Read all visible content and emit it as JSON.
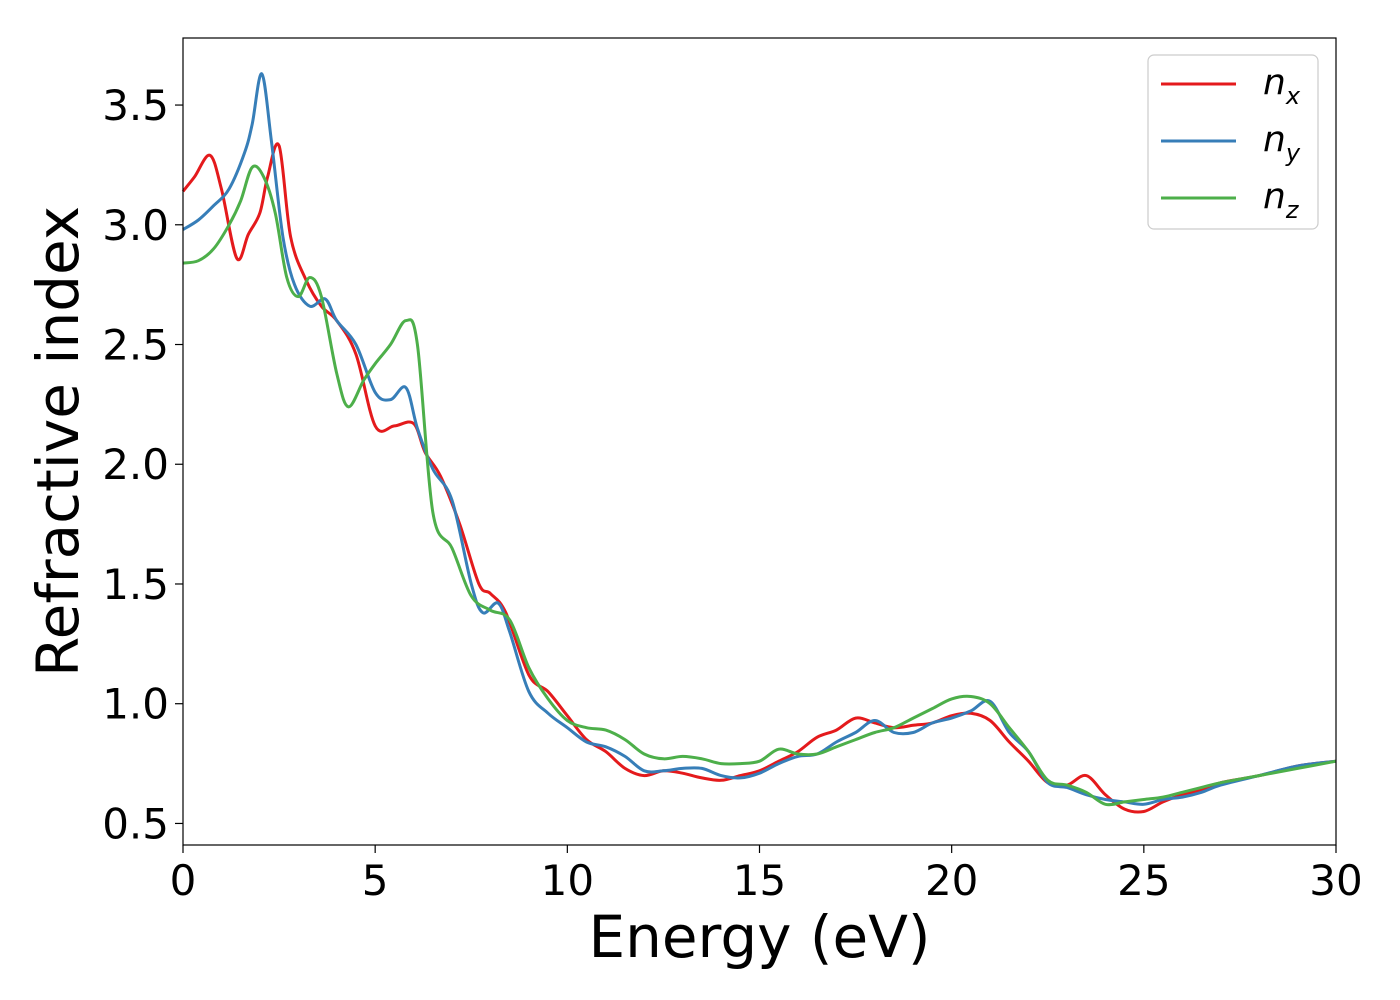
{
  "chart_data": {
    "type": "line",
    "xlabel": "Energy (eV)",
    "ylabel": "Refractive index",
    "xlim": [
      0,
      30
    ],
    "ylim": [
      0.41,
      3.78
    ],
    "xticks": [
      "0",
      "5",
      "10",
      "15",
      "20",
      "25",
      "30"
    ],
    "yticks": [
      "0.5",
      "1.0",
      "1.5",
      "2.0",
      "2.5",
      "3.0",
      "3.5"
    ],
    "grid": false,
    "legend_position": "top-right",
    "series": [
      {
        "name": "n_x",
        "label_main": "n",
        "label_sub": "x",
        "color": "#e41a1c",
        "x": [
          0,
          0.3,
          0.7,
          1.0,
          1.4,
          1.7,
          2.0,
          2.2,
          2.5,
          2.8,
          3.2,
          3.6,
          4.0,
          4.5,
          5.0,
          5.5,
          6.0,
          6.3,
          6.7,
          7.2,
          7.7,
          8.0,
          8.4,
          9.0,
          9.5,
          10.0,
          10.5,
          11.0,
          11.5,
          12.0,
          12.5,
          13.0,
          13.5,
          14.0,
          14.5,
          15.0,
          15.5,
          16.0,
          16.5,
          17.0,
          17.5,
          18.0,
          18.5,
          19.0,
          19.5,
          20.0,
          20.5,
          21.0,
          21.5,
          22.0,
          22.5,
          23.0,
          23.5,
          24.0,
          24.5,
          25.0,
          25.5,
          26.0,
          26.5,
          27.0,
          28.0,
          29.0,
          30.0
        ],
        "values": [
          3.14,
          3.2,
          3.29,
          3.15,
          2.86,
          2.96,
          3.05,
          3.2,
          3.33,
          2.95,
          2.77,
          2.66,
          2.6,
          2.46,
          2.16,
          2.16,
          2.17,
          2.05,
          1.95,
          1.75,
          1.5,
          1.46,
          1.38,
          1.12,
          1.05,
          0.95,
          0.85,
          0.8,
          0.73,
          0.7,
          0.72,
          0.71,
          0.69,
          0.68,
          0.7,
          0.72,
          0.76,
          0.8,
          0.86,
          0.89,
          0.94,
          0.92,
          0.9,
          0.91,
          0.92,
          0.95,
          0.96,
          0.93,
          0.84,
          0.76,
          0.67,
          0.66,
          0.7,
          0.62,
          0.56,
          0.55,
          0.59,
          0.62,
          0.64,
          0.67,
          0.7,
          0.74,
          0.76
        ]
      },
      {
        "name": "n_y",
        "label_main": "n",
        "label_sub": "y",
        "color": "#377eb8",
        "x": [
          0,
          0.4,
          0.8,
          1.2,
          1.6,
          1.8,
          2.05,
          2.3,
          2.6,
          2.9,
          3.3,
          3.7,
          4.0,
          4.5,
          5.0,
          5.4,
          5.8,
          6.1,
          6.5,
          7.0,
          7.5,
          7.8,
          8.2,
          8.5,
          9.0,
          9.5,
          10.0,
          10.5,
          11.0,
          11.5,
          12.0,
          12.5,
          13.0,
          13.5,
          14.0,
          14.5,
          15.0,
          15.5,
          16.0,
          16.5,
          17.0,
          17.5,
          18.0,
          18.5,
          19.0,
          19.5,
          20.0,
          20.5,
          21.0,
          21.5,
          22.0,
          22.5,
          23.0,
          23.5,
          24.0,
          24.5,
          25.0,
          25.5,
          26.0,
          26.5,
          27.0,
          28.0,
          29.0,
          30.0
        ],
        "values": [
          2.98,
          3.02,
          3.08,
          3.15,
          3.3,
          3.42,
          3.63,
          3.35,
          2.95,
          2.75,
          2.66,
          2.69,
          2.6,
          2.5,
          2.3,
          2.27,
          2.32,
          2.15,
          1.98,
          1.85,
          1.5,
          1.38,
          1.42,
          1.3,
          1.05,
          0.96,
          0.9,
          0.84,
          0.82,
          0.78,
          0.72,
          0.72,
          0.73,
          0.73,
          0.7,
          0.69,
          0.71,
          0.75,
          0.78,
          0.79,
          0.84,
          0.88,
          0.93,
          0.88,
          0.88,
          0.92,
          0.94,
          0.97,
          1.01,
          0.88,
          0.8,
          0.67,
          0.65,
          0.62,
          0.6,
          0.59,
          0.58,
          0.6,
          0.61,
          0.63,
          0.66,
          0.7,
          0.74,
          0.76
        ]
      },
      {
        "name": "n_z",
        "label_main": "n",
        "label_sub": "z",
        "color": "#4daf4a",
        "x": [
          0,
          0.4,
          0.8,
          1.2,
          1.5,
          1.8,
          2.1,
          2.4,
          2.7,
          3.0,
          3.3,
          3.6,
          4.0,
          4.3,
          4.7,
          5.0,
          5.4,
          5.8,
          6.1,
          6.5,
          7.0,
          7.5,
          8.0,
          8.5,
          9.0,
          9.5,
          10.0,
          10.5,
          11.0,
          11.5,
          12.0,
          12.5,
          13.0,
          13.5,
          14.0,
          14.5,
          15.0,
          15.5,
          16.0,
          16.5,
          17.0,
          17.5,
          18.0,
          18.5,
          19.0,
          19.5,
          20.0,
          20.5,
          21.0,
          21.5,
          22.0,
          22.5,
          23.0,
          23.5,
          24.0,
          24.5,
          25.0,
          25.5,
          26.0,
          26.5,
          27.0,
          28.0,
          29.0,
          30.0
        ],
        "values": [
          2.84,
          2.85,
          2.9,
          3.0,
          3.1,
          3.24,
          3.2,
          3.05,
          2.78,
          2.7,
          2.78,
          2.7,
          2.38,
          2.24,
          2.35,
          2.42,
          2.5,
          2.6,
          2.5,
          1.8,
          1.65,
          1.45,
          1.39,
          1.35,
          1.15,
          1.02,
          0.93,
          0.9,
          0.89,
          0.85,
          0.79,
          0.77,
          0.78,
          0.77,
          0.75,
          0.75,
          0.76,
          0.81,
          0.79,
          0.79,
          0.82,
          0.85,
          0.88,
          0.9,
          0.94,
          0.98,
          1.02,
          1.03,
          1.0,
          0.9,
          0.8,
          0.68,
          0.66,
          0.63,
          0.58,
          0.59,
          0.6,
          0.61,
          0.63,
          0.65,
          0.67,
          0.7,
          0.73,
          0.76
        ]
      }
    ]
  }
}
